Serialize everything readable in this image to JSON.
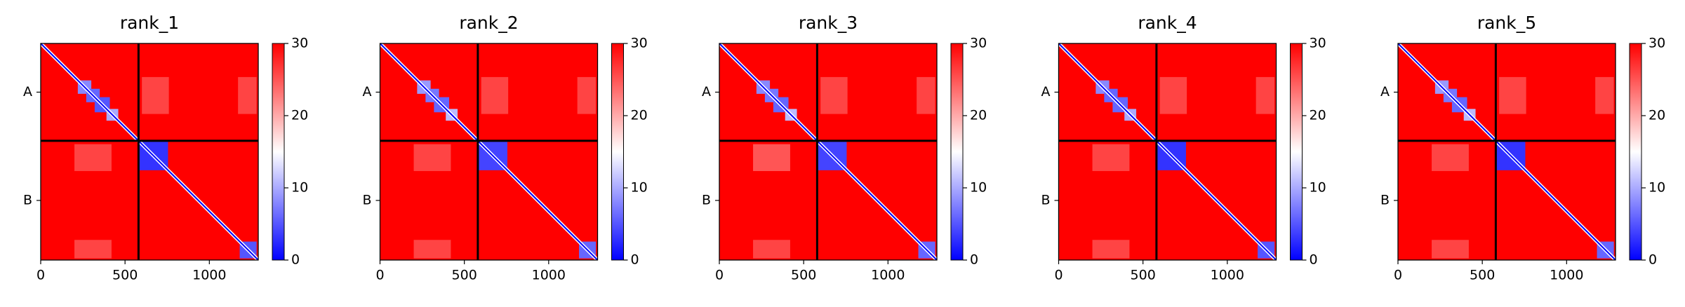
{
  "chart_data": [
    {
      "type": "heatmap",
      "title": "rank_1",
      "colormap": "bwr",
      "xlim": [
        0,
        1290
      ],
      "ylim": [
        1290,
        0
      ],
      "xticks": [
        0,
        500,
        1000
      ],
      "yticks": [
        {
          "value": 290,
          "label": "A"
        },
        {
          "value": 935,
          "label": "B"
        }
      ],
      "chain_breaks": [
        580
      ],
      "background_value": 30,
      "diagonal_value": 0,
      "regions": [
        {
          "x": [
            220,
            300
          ],
          "y": [
            220,
            300
          ],
          "value": 8
        },
        {
          "x": [
            270,
            350
          ],
          "y": [
            270,
            350
          ],
          "value": 6
        },
        {
          "x": [
            320,
            410
          ],
          "y": [
            320,
            410
          ],
          "value": 5
        },
        {
          "x": [
            390,
            460
          ],
          "y": [
            390,
            460
          ],
          "value": 10
        },
        {
          "x": [
            200,
            420
          ],
          "y": [
            600,
            760
          ],
          "value": 26
        },
        {
          "x": [
            600,
            760
          ],
          "y": [
            200,
            420
          ],
          "value": 26
        },
        {
          "x": [
            1170,
            1280
          ],
          "y": [
            200,
            420
          ],
          "value": 26
        },
        {
          "x": [
            200,
            420
          ],
          "y": [
            1170,
            1280
          ],
          "value": 26
        },
        {
          "x": [
            585,
            755
          ],
          "y": [
            585,
            755
          ],
          "value": 3
        },
        {
          "x": [
            1180,
            1280
          ],
          "y": [
            1180,
            1280
          ],
          "value": 5
        }
      ],
      "cbar_lim": [
        0,
        30
      ],
      "cbar_ticks": [
        0,
        10,
        20,
        30
      ]
    },
    {
      "type": "heatmap",
      "title": "rank_2",
      "colormap": "bwr",
      "xlim": [
        0,
        1290
      ],
      "ylim": [
        1290,
        0
      ],
      "xticks": [
        0,
        500,
        1000
      ],
      "yticks": [
        {
          "value": 290,
          "label": "A"
        },
        {
          "value": 935,
          "label": "B"
        }
      ],
      "chain_breaks": [
        580
      ],
      "background_value": 30,
      "diagonal_value": 0,
      "regions": [
        {
          "x": [
            220,
            300
          ],
          "y": [
            220,
            300
          ],
          "value": 9
        },
        {
          "x": [
            270,
            350
          ],
          "y": [
            270,
            350
          ],
          "value": 7
        },
        {
          "x": [
            320,
            410
          ],
          "y": [
            320,
            410
          ],
          "value": 6
        },
        {
          "x": [
            390,
            460
          ],
          "y": [
            390,
            460
          ],
          "value": 11
        },
        {
          "x": [
            200,
            420
          ],
          "y": [
            600,
            760
          ],
          "value": 26
        },
        {
          "x": [
            600,
            760
          ],
          "y": [
            200,
            420
          ],
          "value": 26
        },
        {
          "x": [
            1170,
            1280
          ],
          "y": [
            200,
            420
          ],
          "value": 26
        },
        {
          "x": [
            200,
            420
          ],
          "y": [
            1170,
            1280
          ],
          "value": 26
        },
        {
          "x": [
            585,
            755
          ],
          "y": [
            585,
            755
          ],
          "value": 4
        },
        {
          "x": [
            1180,
            1280
          ],
          "y": [
            1180,
            1280
          ],
          "value": 6
        }
      ],
      "cbar_lim": [
        0,
        30
      ],
      "cbar_ticks": [
        0,
        10,
        20,
        30
      ]
    },
    {
      "type": "heatmap",
      "title": "rank_3",
      "colormap": "bwr",
      "xlim": [
        0,
        1290
      ],
      "ylim": [
        1290,
        0
      ],
      "xticks": [
        0,
        500,
        1000
      ],
      "yticks": [
        {
          "value": 290,
          "label": "A"
        },
        {
          "value": 935,
          "label": "B"
        }
      ],
      "chain_breaks": [
        580
      ],
      "background_value": 30,
      "diagonal_value": 0,
      "regions": [
        {
          "x": [
            220,
            300
          ],
          "y": [
            220,
            300
          ],
          "value": 8
        },
        {
          "x": [
            270,
            350
          ],
          "y": [
            270,
            350
          ],
          "value": 7
        },
        {
          "x": [
            320,
            410
          ],
          "y": [
            320,
            410
          ],
          "value": 6
        },
        {
          "x": [
            390,
            460
          ],
          "y": [
            390,
            460
          ],
          "value": 11
        },
        {
          "x": [
            200,
            420
          ],
          "y": [
            600,
            760
          ],
          "value": 25
        },
        {
          "x": [
            600,
            760
          ],
          "y": [
            200,
            420
          ],
          "value": 26
        },
        {
          "x": [
            1170,
            1280
          ],
          "y": [
            200,
            420
          ],
          "value": 26
        },
        {
          "x": [
            200,
            420
          ],
          "y": [
            1170,
            1280
          ],
          "value": 26
        },
        {
          "x": [
            585,
            755
          ],
          "y": [
            585,
            755
          ],
          "value": 4
        },
        {
          "x": [
            1180,
            1280
          ],
          "y": [
            1180,
            1280
          ],
          "value": 6
        }
      ],
      "cbar_lim": [
        0,
        30
      ],
      "cbar_ticks": [
        0,
        10,
        20,
        30
      ]
    },
    {
      "type": "heatmap",
      "title": "rank_4",
      "colormap": "bwr",
      "xlim": [
        0,
        1290
      ],
      "ylim": [
        1290,
        0
      ],
      "xticks": [
        0,
        500,
        1000
      ],
      "yticks": [
        {
          "value": 290,
          "label": "A"
        },
        {
          "value": 935,
          "label": "B"
        }
      ],
      "chain_breaks": [
        580
      ],
      "background_value": 30,
      "diagonal_value": 0,
      "regions": [
        {
          "x": [
            220,
            300
          ],
          "y": [
            220,
            300
          ],
          "value": 8
        },
        {
          "x": [
            270,
            350
          ],
          "y": [
            270,
            350
          ],
          "value": 6
        },
        {
          "x": [
            320,
            410
          ],
          "y": [
            320,
            410
          ],
          "value": 6
        },
        {
          "x": [
            390,
            460
          ],
          "y": [
            390,
            460
          ],
          "value": 10
        },
        {
          "x": [
            200,
            420
          ],
          "y": [
            600,
            760
          ],
          "value": 26
        },
        {
          "x": [
            600,
            760
          ],
          "y": [
            200,
            420
          ],
          "value": 26
        },
        {
          "x": [
            1170,
            1280
          ],
          "y": [
            200,
            420
          ],
          "value": 26
        },
        {
          "x": [
            200,
            420
          ],
          "y": [
            1170,
            1280
          ],
          "value": 26
        },
        {
          "x": [
            585,
            755
          ],
          "y": [
            585,
            755
          ],
          "value": 3
        },
        {
          "x": [
            1180,
            1280
          ],
          "y": [
            1180,
            1280
          ],
          "value": 5
        }
      ],
      "cbar_lim": [
        0,
        30
      ],
      "cbar_ticks": [
        0,
        10,
        20,
        30
      ]
    },
    {
      "type": "heatmap",
      "title": "rank_5",
      "colormap": "bwr",
      "xlim": [
        0,
        1290
      ],
      "ylim": [
        1290,
        0
      ],
      "xticks": [
        0,
        500,
        1000
      ],
      "yticks": [
        {
          "value": 290,
          "label": "A"
        },
        {
          "value": 935,
          "label": "B"
        }
      ],
      "chain_breaks": [
        580
      ],
      "background_value": 30,
      "diagonal_value": 0,
      "regions": [
        {
          "x": [
            220,
            300
          ],
          "y": [
            220,
            300
          ],
          "value": 9
        },
        {
          "x": [
            270,
            350
          ],
          "y": [
            270,
            350
          ],
          "value": 7
        },
        {
          "x": [
            320,
            410
          ],
          "y": [
            320,
            410
          ],
          "value": 6
        },
        {
          "x": [
            390,
            460
          ],
          "y": [
            390,
            460
          ],
          "value": 11
        },
        {
          "x": [
            200,
            420
          ],
          "y": [
            600,
            760
          ],
          "value": 26
        },
        {
          "x": [
            600,
            760
          ],
          "y": [
            200,
            420
          ],
          "value": 26
        },
        {
          "x": [
            1170,
            1280
          ],
          "y": [
            200,
            420
          ],
          "value": 26
        },
        {
          "x": [
            200,
            420
          ],
          "y": [
            1170,
            1280
          ],
          "value": 26
        },
        {
          "x": [
            585,
            755
          ],
          "y": [
            585,
            755
          ],
          "value": 3
        },
        {
          "x": [
            1180,
            1280
          ],
          "y": [
            1180,
            1280
          ],
          "value": 6
        }
      ],
      "cbar_lim": [
        0,
        30
      ],
      "cbar_ticks": [
        0,
        10,
        20,
        30
      ]
    }
  ]
}
